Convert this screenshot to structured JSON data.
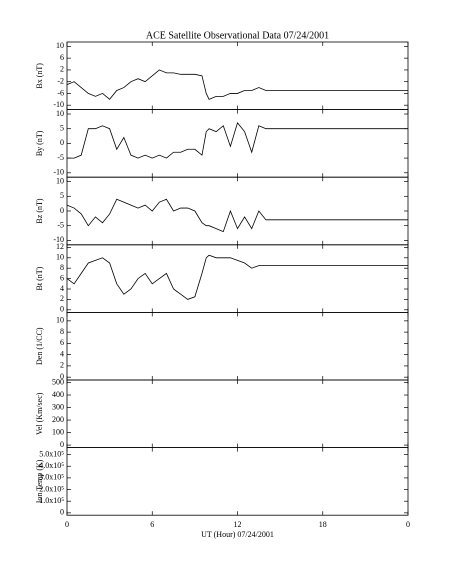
{
  "chart_data": [
    {
      "type": "line",
      "title": "ACE Satellite Observational Data  07/24/2001",
      "ylabel": "Bx (nT)",
      "ylim": [
        -11.5,
        11.5
      ],
      "yticks": [
        10,
        6,
        2,
        -2,
        -6,
        -10
      ],
      "x": [
        0,
        0.5,
        1,
        1.5,
        2,
        2.5,
        3,
        3.5,
        4,
        4.5,
        5,
        5.5,
        6,
        6.5,
        7,
        7.5,
        8,
        8.5,
        9,
        9.5,
        9.8,
        10,
        10.5,
        11,
        11.5,
        12,
        12.5,
        13,
        13.5,
        14,
        24
      ],
      "series": [
        {
          "name": "Bx",
          "color": "#000000",
          "values": [
            -3,
            -2,
            -4,
            -6,
            -7,
            -6,
            -8,
            -5,
            -4,
            -2,
            -1,
            -2,
            0,
            2,
            1,
            1,
            0.5,
            0.5,
            0.5,
            0,
            -6,
            -8,
            -7,
            -7,
            -6,
            -6,
            -5,
            -5,
            -4,
            -5,
            -5
          ]
        }
      ]
    },
    {
      "type": "line",
      "ylabel": "By (nT)",
      "ylim": [
        -11.5,
        11.5
      ],
      "yticks": [
        10,
        5,
        0,
        -5,
        -10
      ],
      "x": [
        0,
        0.5,
        1,
        1.5,
        2,
        2.5,
        3,
        3.5,
        4,
        4.5,
        5,
        5.5,
        6,
        6.5,
        7,
        7.5,
        8,
        8.5,
        9,
        9.5,
        9.8,
        10,
        10.5,
        11,
        11.5,
        12,
        12.5,
        13,
        13.5,
        14,
        24
      ],
      "series": [
        {
          "name": "By",
          "color": "#000000",
          "values": [
            -5,
            -5,
            -4,
            5,
            5,
            6,
            5,
            -2,
            2,
            -4,
            -5,
            -4,
            -5,
            -4,
            -5,
            -3,
            -3,
            -2,
            -2,
            -4,
            4,
            5,
            4,
            6,
            -1,
            7,
            4,
            -3,
            6,
            5,
            5
          ]
        }
      ]
    },
    {
      "type": "line",
      "ylabel": "Bz (nT)",
      "ylim": [
        -11.5,
        11.5
      ],
      "yticks": [
        10,
        5,
        0,
        -5,
        -10
      ],
      "x": [
        0,
        0.5,
        1,
        1.5,
        2,
        2.5,
        3,
        3.5,
        4,
        4.5,
        5,
        5.5,
        6,
        6.5,
        7,
        7.5,
        8,
        8.5,
        9,
        9.5,
        9.8,
        10,
        10.5,
        11,
        11.5,
        12,
        12.5,
        13,
        13.5,
        14,
        24
      ],
      "series": [
        {
          "name": "Bz",
          "color": "#000000",
          "values": [
            2,
            1,
            -1,
            -5,
            -2,
            -4,
            -1,
            4,
            3,
            2,
            1,
            2,
            0,
            3,
            4,
            0,
            1,
            1,
            0,
            -4,
            -5,
            -5,
            -6,
            -7,
            0,
            -6,
            -2,
            -6,
            0,
            -3,
            -3
          ]
        }
      ]
    },
    {
      "type": "line",
      "ylabel": "Bt (nT)",
      "ylim": [
        -0.5,
        12.5
      ],
      "yticks": [
        12,
        10,
        8,
        6,
        4,
        2,
        0
      ],
      "x": [
        0,
        0.5,
        1,
        1.5,
        2,
        2.5,
        3,
        3.5,
        4,
        4.5,
        5,
        5.5,
        6,
        6.5,
        7,
        7.5,
        8,
        8.5,
        9,
        9.5,
        9.8,
        10,
        10.5,
        11,
        11.5,
        12,
        12.5,
        13,
        13.5,
        14,
        24
      ],
      "series": [
        {
          "name": "Bt",
          "color": "#000000",
          "values": [
            6,
            5,
            7,
            9,
            9.5,
            10,
            9,
            5,
            3,
            4,
            6,
            7,
            5,
            6,
            7,
            4,
            3,
            2,
            2.5,
            7,
            10,
            10.5,
            10,
            10,
            10,
            9.5,
            9,
            8,
            8.5,
            8.5,
            8.5
          ]
        }
      ]
    },
    {
      "type": "line",
      "ylabel": "Den (1/CC)",
      "ylim": [
        -0.5,
        11.5
      ],
      "yticks": [
        10,
        8,
        6,
        4,
        2,
        0
      ]
    },
    {
      "type": "line",
      "ylabel": "Vel (Km/sec)",
      "ylim": [
        -20,
        520
      ],
      "yticks": [
        500,
        400,
        300,
        200,
        100,
        0
      ]
    },
    {
      "type": "line",
      "ylabel": "Ion Temp (K)",
      "xlabel": "UT (Hour)  07/24/2001",
      "ylim": [
        -20000,
        560000
      ],
      "yticks": [
        {
          "value": 500000,
          "label": "5.0x10⁵"
        },
        {
          "value": 400000,
          "label": "4.0x10⁵"
        },
        {
          "value": 300000,
          "label": "3.0x10⁵"
        },
        {
          "value": 200000,
          "label": "2.0x10⁵"
        },
        {
          "value": 100000,
          "label": "1.0x10⁵"
        },
        0
      ],
      "xlim": [
        0,
        24
      ],
      "xticks": [
        0,
        6,
        12,
        18,
        {
          "value": 24,
          "label": "0"
        }
      ]
    }
  ]
}
